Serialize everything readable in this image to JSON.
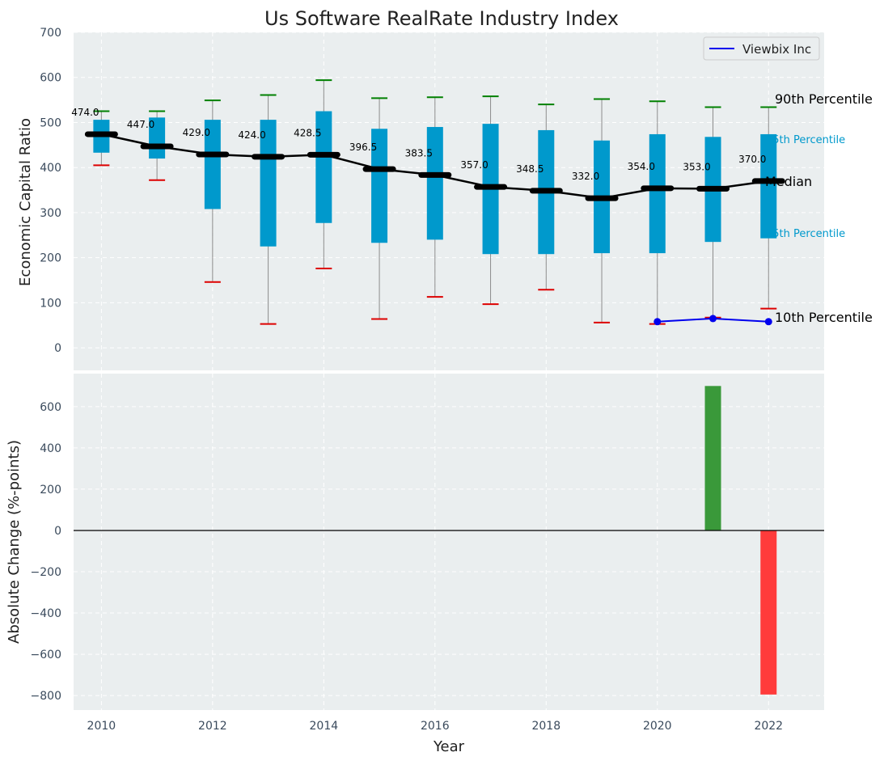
{
  "chart_data": [
    {
      "type": "box",
      "title": "Us Software RealRate Industry Index",
      "ylabel": "Economic Capital Ratio",
      "xlabel": "",
      "ylim": [
        -50,
        700
      ],
      "xlim": [
        2009.5,
        2023
      ],
      "yticks": [
        0,
        100,
        200,
        300,
        400,
        500,
        600,
        700
      ],
      "grid": true,
      "x": [
        2010,
        2011,
        2012,
        2013,
        2014,
        2015,
        2016,
        2017,
        2018,
        2019,
        2020,
        2021,
        2022
      ],
      "p10": [
        405,
        372,
        146,
        53,
        176,
        64,
        113,
        97,
        129,
        56,
        53,
        67,
        87
      ],
      "p25": [
        433,
        420,
        308,
        225,
        277,
        233,
        240,
        208,
        208,
        210,
        210,
        235,
        243
      ],
      "median": [
        474.0,
        447.0,
        429.0,
        424.0,
        428.5,
        396.5,
        383.5,
        357.0,
        348.5,
        332.0,
        354.0,
        353.0,
        370.0
      ],
      "median_labels": [
        "474.0",
        "447.0",
        "429.0",
        "424.0",
        "428.5",
        "396.5",
        "383.5",
        "357.0",
        "348.5",
        "332.0",
        "354.0",
        "353.0",
        "370.0"
      ],
      "p75": [
        506,
        511,
        506,
        506,
        525,
        486,
        490,
        497,
        483,
        460,
        474,
        468,
        474
      ],
      "p90": [
        525,
        525,
        549,
        561,
        594,
        554,
        556,
        558,
        540,
        552,
        547,
        534,
        534
      ],
      "series": [
        {
          "name": "Viewbix Inc",
          "x": [
            2020,
            2021,
            2022
          ],
          "values": [
            58,
            65,
            58
          ]
        }
      ],
      "legend": {
        "placement": "top-right",
        "entries": [
          "Viewbix Inc"
        ]
      },
      "annotations": {
        "p90": "90th Percentile",
        "p75": "75th Percentile",
        "median": "Median",
        "p25": "25th Percentile",
        "p10": "10th Percentile"
      },
      "colors": {
        "box": "#0099cc",
        "median_line": "#000000",
        "p90_cap": "#008000",
        "p10_cap": "#dd0000",
        "whisker": "#8c8c8c",
        "series": "#0000ee",
        "panel_bg": "#eaeeef"
      }
    },
    {
      "type": "bar",
      "title": "",
      "xlabel": "Year",
      "ylabel": "Absolute Change (%-points)",
      "ylim": [
        -870,
        760
      ],
      "xlim": [
        2009.5,
        2023
      ],
      "yticks": [
        -800,
        -600,
        -400,
        -200,
        0,
        200,
        400,
        600
      ],
      "xticks": [
        2010,
        2012,
        2014,
        2016,
        2018,
        2020,
        2022
      ],
      "grid": true,
      "x": [
        2021,
        2022
      ],
      "values": [
        700,
        -795
      ],
      "colors": {
        "positive": "#3a993a",
        "negative": "#ff3b3b",
        "zero_line": "#000000",
        "panel_bg": "#eaeeef"
      }
    }
  ]
}
